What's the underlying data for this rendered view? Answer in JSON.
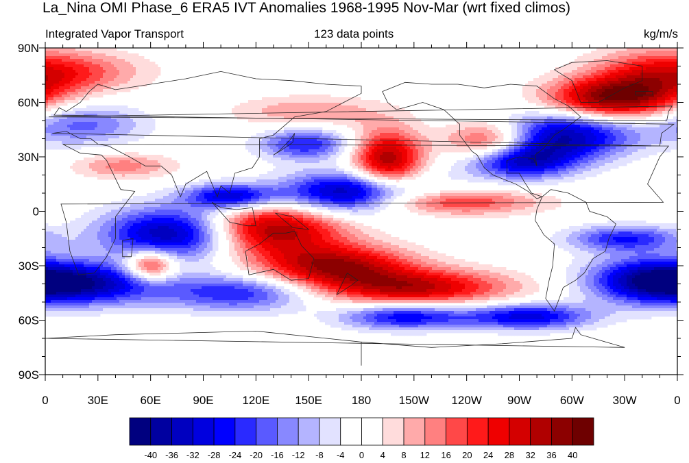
{
  "title": "La_Nina OMI Phase_6 ERA5 IVT Anomalies 1968-1995 Nov-Mar (wrt fixed climos)",
  "subtitle_left": "Integrated Vapor Transport",
  "subtitle_center": "123 data points",
  "subtitle_right": "kg/m/s",
  "y_tick_labels": [
    "90N",
    "60N",
    "30N",
    "0",
    "30S",
    "60S",
    "90S"
  ],
  "x_tick_labels": [
    "0",
    "30E",
    "60E",
    "90E",
    "120E",
    "150E",
    "180",
    "150W",
    "120W",
    "90W",
    "60W",
    "30W",
    "0"
  ],
  "colorbar": {
    "labels": [
      "-40",
      "-36",
      "-32",
      "-28",
      "-24",
      "-20",
      "-16",
      "-12",
      "-8",
      "-4",
      "0",
      "4",
      "8",
      "12",
      "16",
      "20",
      "24",
      "28",
      "32",
      "36",
      "40"
    ],
    "colors": [
      "#00007f",
      "#0000a0",
      "#0000c0",
      "#0000df",
      "#0000ff",
      "#2a2aff",
      "#5a5aff",
      "#8888ff",
      "#b4b4ff",
      "#e2e2ff",
      "#ffffff",
      "#ffffff",
      "#ffdcdc",
      "#ffaaaa",
      "#ff8080",
      "#ff4848",
      "#ff1a1a",
      "#ef0000",
      "#d40000",
      "#b00000",
      "#8c0000",
      "#6e0000"
    ]
  },
  "chart_data": {
    "type": "heatmap",
    "title": "La_Nina OMI Phase_6 ERA5 IVT Anomalies 1968-1995 Nov-Mar (wrt fixed climos)",
    "units": "kg/m/s",
    "xlim": [
      0,
      360
    ],
    "ylim": [
      -90,
      90
    ],
    "levels": [
      -40,
      -36,
      -32,
      -28,
      -24,
      -20,
      -16,
      -12,
      -8,
      -4,
      0,
      4,
      8,
      12,
      16,
      20,
      24,
      28,
      32,
      36,
      40
    ],
    "anomaly_centers": [
      {
        "lon": 15,
        "lat": 77,
        "value": 16,
        "w": 30,
        "h": 8
      },
      {
        "lon": 345,
        "lat": 72,
        "value": 20,
        "w": 25,
        "h": 12
      },
      {
        "lon": 320,
        "lat": 62,
        "value": 34,
        "w": 25,
        "h": 8
      },
      {
        "lon": 295,
        "lat": 42,
        "value": -36,
        "w": 28,
        "h": 9
      },
      {
        "lon": 270,
        "lat": 28,
        "value": -36,
        "w": 22,
        "h": 7
      },
      {
        "lon": 255,
        "lat": 38,
        "value": 30,
        "w": 18,
        "h": 8
      },
      {
        "lon": 195,
        "lat": 28,
        "value": 36,
        "w": 14,
        "h": 12
      },
      {
        "lon": 175,
        "lat": 10,
        "value": -40,
        "w": 28,
        "h": 8
      },
      {
        "lon": 148,
        "lat": 37,
        "value": -24,
        "w": 18,
        "h": 6
      },
      {
        "lon": 75,
        "lat": -12,
        "value": -42,
        "w": 28,
        "h": 10
      },
      {
        "lon": 105,
        "lat": 8,
        "value": -32,
        "w": 18,
        "h": 5
      },
      {
        "lon": 125,
        "lat": -10,
        "value": 40,
        "w": 30,
        "h": 10
      },
      {
        "lon": 165,
        "lat": -30,
        "value": 34,
        "w": 30,
        "h": 8
      },
      {
        "lon": 210,
        "lat": -42,
        "value": 32,
        "w": 38,
        "h": 7
      },
      {
        "lon": 60,
        "lat": -30,
        "value": 30,
        "w": 10,
        "h": 6
      },
      {
        "lon": 25,
        "lat": -40,
        "value": -32,
        "w": 30,
        "h": 8
      },
      {
        "lon": 110,
        "lat": -45,
        "value": -24,
        "w": 30,
        "h": 7
      },
      {
        "lon": 205,
        "lat": -58,
        "value": -28,
        "w": 25,
        "h": 5
      },
      {
        "lon": 275,
        "lat": -58,
        "value": -30,
        "w": 25,
        "h": 5
      },
      {
        "lon": 345,
        "lat": -38,
        "value": -36,
        "w": 25,
        "h": 9
      },
      {
        "lon": 330,
        "lat": -15,
        "value": -24,
        "w": 22,
        "h": 5
      },
      {
        "lon": 20,
        "lat": 48,
        "value": -18,
        "w": 25,
        "h": 8
      },
      {
        "lon": 45,
        "lat": 25,
        "value": 14,
        "w": 20,
        "h": 5
      },
      {
        "lon": 230,
        "lat": 5,
        "value": 22,
        "w": 35,
        "h": 5
      },
      {
        "lon": 150,
        "lat": 55,
        "value": 12,
        "w": 30,
        "h": 6
      }
    ]
  }
}
